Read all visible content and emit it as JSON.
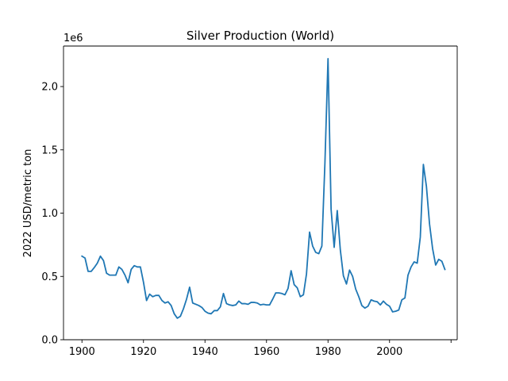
{
  "chart_data": {
    "type": "line",
    "title": "Silver Production (World)",
    "xlabel": "",
    "ylabel": "2022 USD/metric ton",
    "offset_label": "1e6",
    "xlim": [
      1894,
      2022
    ],
    "ylim": [
      0,
      2320000
    ],
    "x_ticks": [
      1900,
      1920,
      1940,
      1960,
      1980,
      2000,
      2020
    ],
    "x_tick_labels": [
      "1900",
      "1920",
      "1940",
      "1960",
      "1980",
      "2000",
      ""
    ],
    "y_ticks": [
      0,
      500000,
      1000000,
      1500000,
      2000000
    ],
    "y_tick_labels": [
      "0.0",
      "0.5",
      "1.0",
      "1.5",
      "2.0"
    ],
    "grid": false,
    "line_color": "#1f77b4",
    "series": [
      {
        "x": [
          1900,
          1901,
          1902,
          1903,
          1904,
          1905,
          1906,
          1907,
          1908,
          1909,
          1910,
          1911,
          1912,
          1913,
          1914,
          1915,
          1916,
          1917,
          1918,
          1919,
          1920,
          1921,
          1922,
          1923,
          1924,
          1925,
          1926,
          1927,
          1928,
          1929,
          1930,
          1931,
          1932,
          1933,
          1934,
          1935,
          1936,
          1937,
          1938,
          1939,
          1940,
          1941,
          1942,
          1943,
          1944,
          1945,
          1946,
          1947,
          1948,
          1949,
          1950,
          1951,
          1952,
          1953,
          1954,
          1955,
          1956,
          1957,
          1958,
          1959,
          1960,
          1961,
          1962,
          1963,
          1964,
          1965,
          1966,
          1967,
          1968,
          1969,
          1970,
          1971,
          1972,
          1973,
          1974,
          1975,
          1976,
          1977,
          1978,
          1979,
          1980,
          1981,
          1982,
          1983,
          1984,
          1985,
          1986,
          1987,
          1988,
          1989,
          1990,
          1991,
          1992,
          1993,
          1994,
          1995,
          1996,
          1997,
          1998,
          1999,
          2000,
          2001,
          2002,
          2003,
          2004,
          2005,
          2006,
          2007,
          2008,
          2009,
          2010,
          2011,
          2012,
          2013,
          2014,
          2015,
          2016,
          2017,
          2018
        ],
        "y": [
          660000,
          645000,
          540000,
          540000,
          570000,
          605000,
          660000,
          625000,
          525000,
          510000,
          510000,
          510000,
          575000,
          555000,
          510000,
          450000,
          555000,
          585000,
          575000,
          575000,
          455000,
          310000,
          360000,
          340000,
          350000,
          350000,
          310000,
          290000,
          300000,
          270000,
          205000,
          170000,
          185000,
          245000,
          320000,
          415000,
          290000,
          280000,
          270000,
          255000,
          225000,
          210000,
          205000,
          230000,
          230000,
          260000,
          365000,
          285000,
          275000,
          270000,
          275000,
          305000,
          285000,
          285000,
          280000,
          295000,
          295000,
          290000,
          275000,
          280000,
          275000,
          275000,
          320000,
          370000,
          370000,
          365000,
          355000,
          405000,
          545000,
          435000,
          410000,
          340000,
          355000,
          520000,
          850000,
          740000,
          690000,
          680000,
          740000,
          1400000,
          2220000,
          1030000,
          730000,
          1020000,
          710000,
          505000,
          440000,
          550000,
          500000,
          400000,
          340000,
          270000,
          250000,
          265000,
          315000,
          305000,
          300000,
          275000,
          305000,
          280000,
          265000,
          220000,
          225000,
          235000,
          315000,
          330000,
          510000,
          575000,
          615000,
          605000,
          810000,
          1385000,
          1210000,
          915000,
          720000,
          590000,
          635000,
          620000,
          555000
        ]
      }
    ]
  }
}
